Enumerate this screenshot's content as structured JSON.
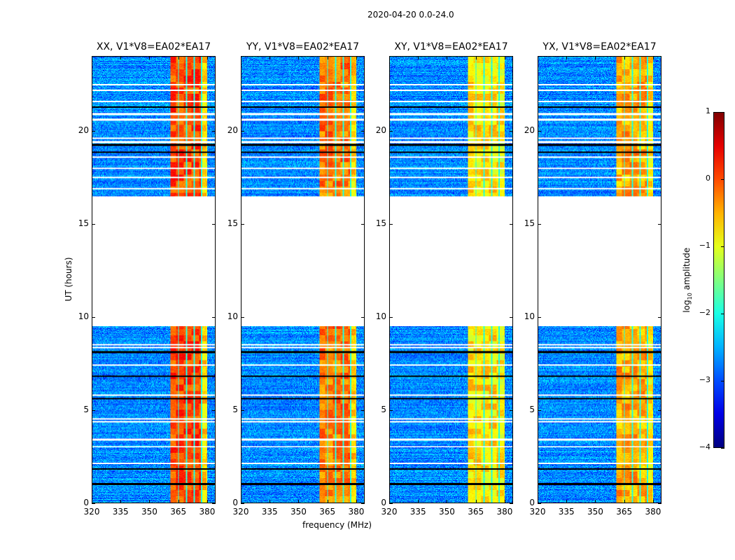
{
  "chart_data": {
    "type": "heatmap",
    "suptitle": "2020-04-20 0.0-24.0",
    "xlabel": "frequency (MHz)",
    "ylabel": "UT (hours)",
    "colorbar_label": "log10 amplitude",
    "colorbar_label_main": "log",
    "colorbar_label_sub": "10",
    "colorbar_label_rest": " amplitude",
    "colormap": "jet",
    "clim": [
      -4,
      1
    ],
    "colorbar_ticks": [
      "1",
      "0",
      "−1",
      "−2",
      "−3",
      "−4"
    ],
    "colorbar_tick_values": [
      1,
      0,
      -1,
      -2,
      -3,
      -4
    ],
    "xlim": [
      320,
      384.4
    ],
    "ylim": [
      0,
      24
    ],
    "xticks": [
      320,
      335,
      350,
      365,
      380
    ],
    "xtick_labels": [
      "320",
      "335",
      "350",
      "365",
      "380"
    ],
    "yticks": [
      0,
      5,
      10,
      15,
      20
    ],
    "ytick_labels": [
      "0",
      "5",
      "10",
      "15",
      "20"
    ],
    "data_gap_hours": [
      9.5,
      16.5
    ],
    "flagged_white_rows_hours": [
      22.5,
      22.2,
      21.6,
      20.9,
      20.6,
      19.6,
      19.4,
      18.6,
      18.0,
      17.5,
      16.9,
      8.5,
      8.35,
      7.4,
      5.8,
      4.5,
      4.35,
      3.4,
      3.0,
      2.1
    ],
    "flagged_black_rows_hours": [
      21.3,
      19.25,
      18.85,
      8.1,
      6.8,
      5.6,
      1.8,
      1.0
    ],
    "bright_band_mhz": [
      361,
      380.5
    ],
    "band_channel_gaps_mhz": [
      365.3,
      369.6,
      373.5,
      377.4
    ],
    "background_log_amplitude": -2.9,
    "panels": [
      {
        "title": "XX, V1*V8=EA02*EA17",
        "band_level": 0.05,
        "last_channel_level": -0.7
      },
      {
        "title": "YY, V1*V8=EA02*EA17",
        "band_level": -0.2,
        "last_channel_level": -0.7
      },
      {
        "title": "XY, V1*V8=EA02*EA17",
        "band_level": -0.75,
        "last_channel_level": -0.85
      },
      {
        "title": "YX, V1*V8=EA02*EA17",
        "band_level": -0.45,
        "last_channel_level": -0.8
      }
    ]
  }
}
